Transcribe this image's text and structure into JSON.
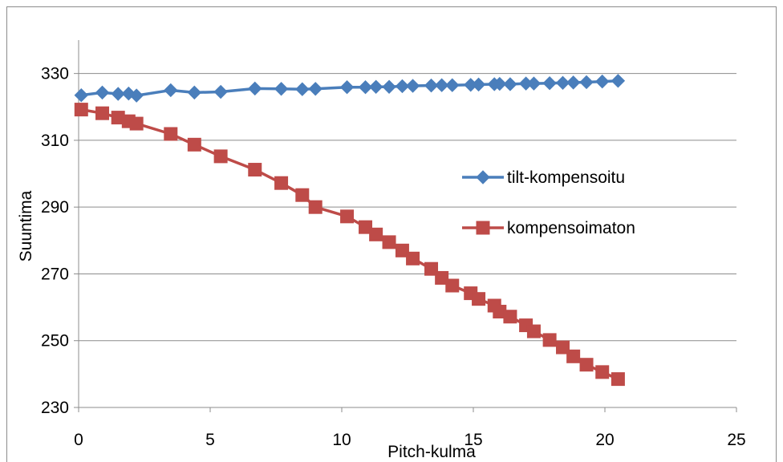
{
  "chart_data": {
    "type": "line",
    "title": "",
    "xlabel": "Pitch-kulma",
    "ylabel": "Suuntima",
    "xlim": [
      0,
      25
    ],
    "ylim": [
      230,
      340
    ],
    "xticks": [
      0,
      5,
      10,
      15,
      20,
      25
    ],
    "yticks": [
      230,
      250,
      270,
      290,
      310,
      330
    ],
    "grid": "horizontal",
    "legend_position": "right",
    "series": [
      {
        "name": "tilt-kompensoitu",
        "color": "#4a7ebb",
        "marker": "diamond",
        "x": [
          0.1,
          0.9,
          1.5,
          1.9,
          2.2,
          3.5,
          4.4,
          5.4,
          6.7,
          7.7,
          8.5,
          9.0,
          10.2,
          10.9,
          11.3,
          11.8,
          12.3,
          12.7,
          13.4,
          13.8,
          14.2,
          14.9,
          15.2,
          15.8,
          16.0,
          16.4,
          17.0,
          17.3,
          17.9,
          18.4,
          18.8,
          19.3,
          19.9,
          20.5
        ],
        "y": [
          323.5,
          324.3,
          323.9,
          324.0,
          323.4,
          325.0,
          324.3,
          324.5,
          325.5,
          325.4,
          325.3,
          325.4,
          325.9,
          325.9,
          326.0,
          326.0,
          326.2,
          326.3,
          326.4,
          326.5,
          326.5,
          326.6,
          326.7,
          326.8,
          326.9,
          326.8,
          327.0,
          327.0,
          327.1,
          327.2,
          327.3,
          327.4,
          327.6,
          327.8
        ]
      },
      {
        "name": "kompensoimaton",
        "color": "#be4b48",
        "marker": "square",
        "x": [
          0.1,
          0.9,
          1.5,
          1.9,
          2.2,
          3.5,
          4.4,
          5.4,
          6.7,
          7.7,
          8.5,
          9.0,
          10.2,
          10.9,
          11.3,
          11.8,
          12.3,
          12.7,
          13.4,
          13.8,
          14.2,
          14.9,
          15.2,
          15.8,
          16.0,
          16.4,
          17.0,
          17.3,
          17.9,
          18.4,
          18.8,
          19.3,
          19.9,
          20.5
        ],
        "y": [
          319.2,
          318.1,
          316.8,
          315.7,
          315.0,
          311.9,
          308.7,
          305.2,
          301.2,
          297.2,
          293.6,
          290.0,
          287.2,
          284.0,
          281.8,
          279.5,
          277.0,
          274.6,
          271.5,
          268.8,
          266.5,
          264.2,
          262.5,
          260.5,
          258.7,
          257.2,
          254.6,
          252.8,
          250.2,
          248.0,
          245.3,
          242.8,
          240.6,
          238.5
        ]
      }
    ]
  }
}
